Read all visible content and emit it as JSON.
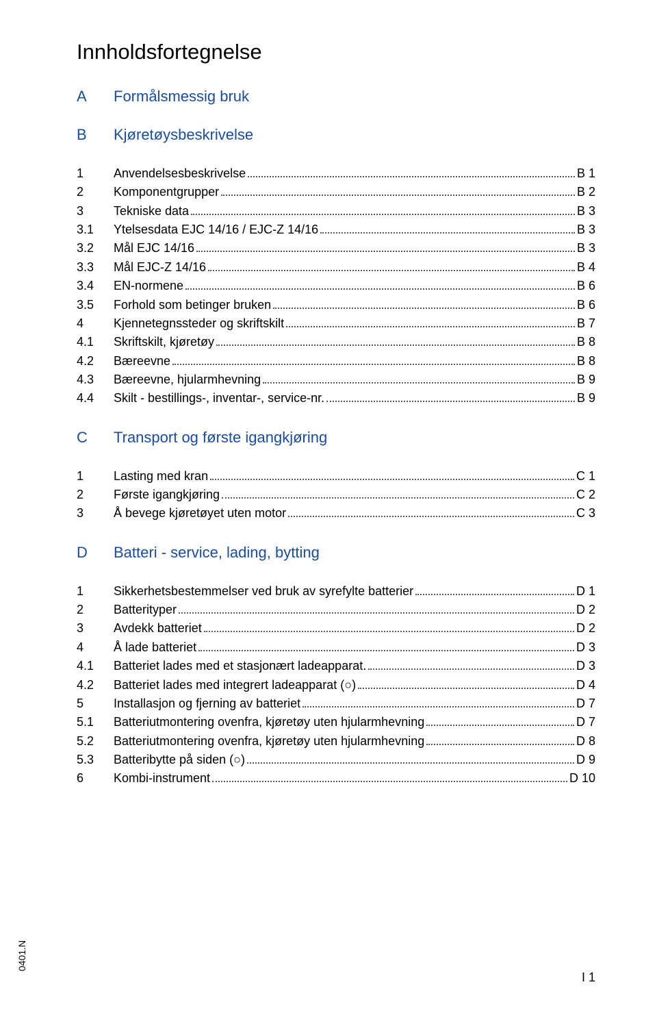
{
  "title": "Innholdsfortegnelse",
  "colors": {
    "link_blue": "#1a4ca0",
    "text": "#000000",
    "bg": "#ffffff"
  },
  "sections": [
    {
      "letter": "A",
      "name": "Formålsmessig bruk",
      "entries": []
    },
    {
      "letter": "B",
      "name": "Kjøretøysbeskrivelse",
      "entries": [
        {
          "num": "1",
          "label": "Anvendelsesbeskrivelse",
          "page": "B 1"
        },
        {
          "num": "2",
          "label": "Komponentgrupper",
          "page": "B 2"
        },
        {
          "num": "3",
          "label": "Tekniske data",
          "page": "B 3"
        },
        {
          "num": "3.1",
          "label": "Ytelsesdata EJC 14/16 / EJC-Z 14/16",
          "page": "B 3"
        },
        {
          "num": "3.2",
          "label": "Mål EJC 14/16",
          "page": "B 3"
        },
        {
          "num": "3.3",
          "label": "Mål EJC-Z 14/16",
          "page": "B 4"
        },
        {
          "num": "3.4",
          "label": "EN-normene",
          "page": "B 6"
        },
        {
          "num": "3.5",
          "label": "Forhold som betinger bruken",
          "page": "B 6"
        },
        {
          "num": "4",
          "label": "Kjennetegnssteder og skriftskilt",
          "page": "B 7"
        },
        {
          "num": "4.1",
          "label": "Skriftskilt, kjøretøy",
          "page": "B 8"
        },
        {
          "num": "4.2",
          "label": "Bæreevne",
          "page": "B 8"
        },
        {
          "num": "4.3",
          "label": "Bæreevne, hjularmhevning",
          "page": "B 9"
        },
        {
          "num": "4.4",
          "label": "Skilt - bestillings-, inventar-, service-nr.",
          "page": "B 9"
        }
      ]
    },
    {
      "letter": "C",
      "name": "Transport og første igangkjøring",
      "entries": [
        {
          "num": "1",
          "label": "Lasting med kran",
          "page": "C 1"
        },
        {
          "num": "2",
          "label": "Første igangkjøring",
          "page": "C 2"
        },
        {
          "num": "3",
          "label": "Å bevege kjøretøyet uten motor",
          "page": "C 3"
        }
      ]
    },
    {
      "letter": "D",
      "name": "Batteri - service, lading, bytting",
      "entries": [
        {
          "num": "1",
          "label": "Sikkerhetsbestemmelser ved bruk av syrefylte batterier",
          "page": "D 1"
        },
        {
          "num": "2",
          "label": "Batterityper",
          "page": "D 2"
        },
        {
          "num": "3",
          "label": "Avdekk batteriet",
          "page": "D 2"
        },
        {
          "num": "4",
          "label": "Å lade batteriet",
          "page": "D 3"
        },
        {
          "num": "4.1",
          "label": "Batteriet lades med et stasjonært ladeapparat.",
          "page": "D 3"
        },
        {
          "num": "4.2",
          "label": "Batteriet lades med integrert ladeapparat (○)",
          "page": "D 4"
        },
        {
          "num": "5",
          "label": "Installasjon og fjerning av batteriet",
          "page": "D 7"
        },
        {
          "num": "5.1",
          "label": "Batteriutmontering ovenfra, kjøretøy uten hjularmhevning",
          "page": "D 7"
        },
        {
          "num": "5.2",
          "label": "Batteriutmontering ovenfra, kjøretøy uten hjularmhevning",
          "page": "D 8"
        },
        {
          "num": "5.3",
          "label": "Batteribytte på siden (○)",
          "page": "D 9"
        },
        {
          "num": "6",
          "label": "Kombi-instrument",
          "page": "D 10"
        }
      ]
    }
  ],
  "side_label": "0401.N",
  "page_footer": "I 1"
}
